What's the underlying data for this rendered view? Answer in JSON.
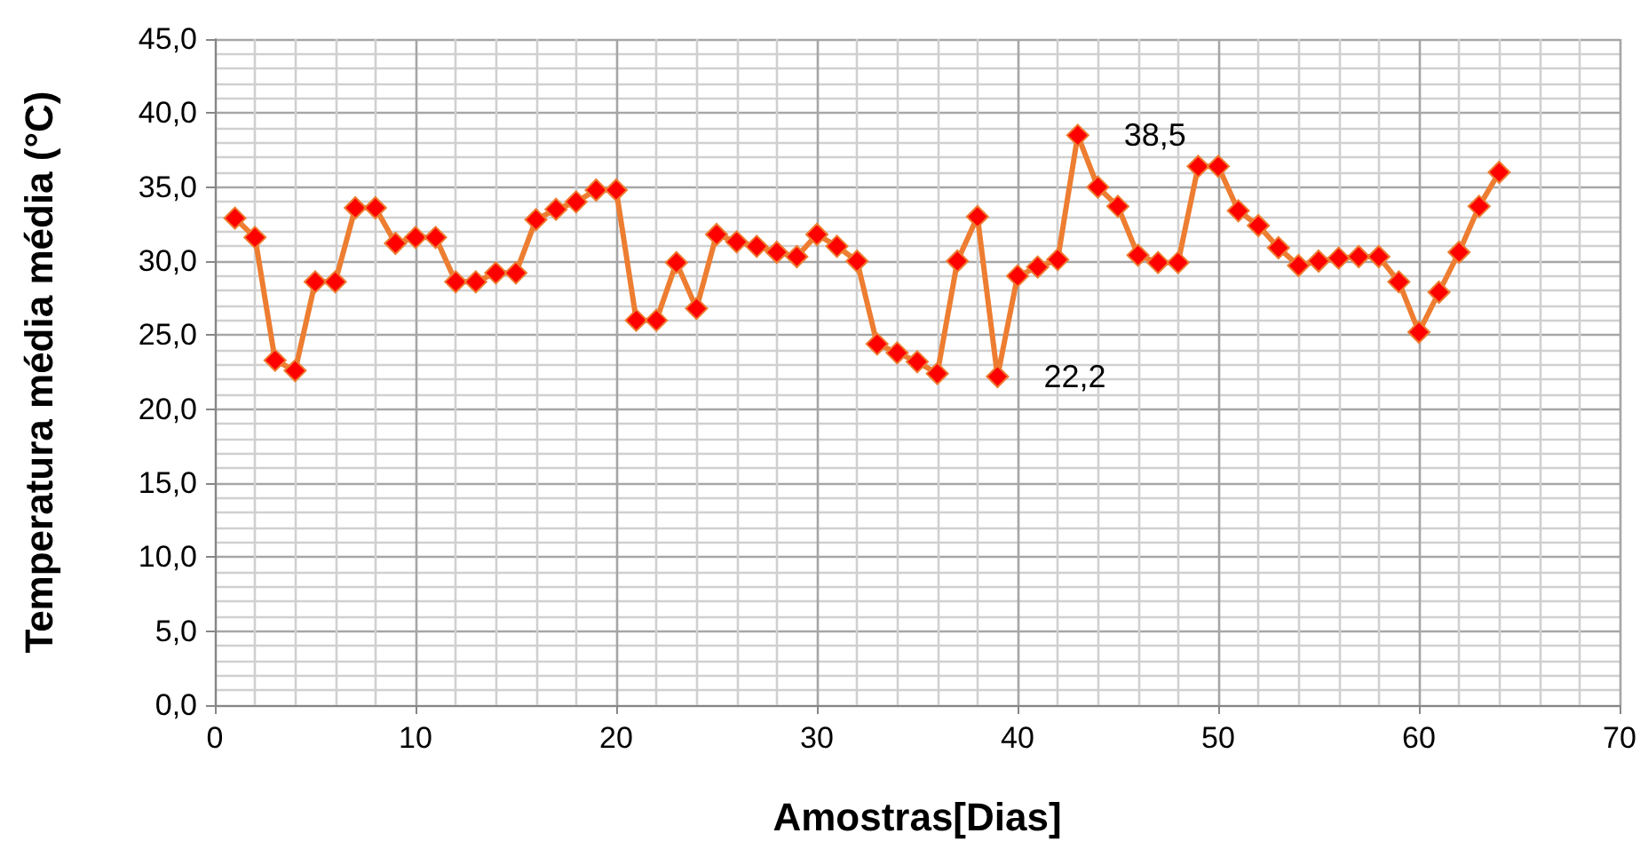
{
  "chart_data": {
    "type": "line",
    "xlabel": "Amostras[Dias]",
    "ylabel": "Temperatura média média (°C)",
    "x": [
      1,
      2,
      3,
      4,
      5,
      6,
      7,
      8,
      9,
      10,
      11,
      12,
      13,
      14,
      15,
      16,
      17,
      18,
      19,
      20,
      21,
      22,
      23,
      24,
      25,
      26,
      27,
      28,
      29,
      30,
      31,
      32,
      33,
      34,
      35,
      36,
      37,
      38,
      39,
      40,
      41,
      42,
      43,
      44,
      45,
      46,
      47,
      48,
      49,
      50,
      51,
      52,
      53,
      54,
      55,
      56,
      57,
      58,
      59,
      60,
      61,
      62,
      63,
      64
    ],
    "series": [
      {
        "color": "#ed7d31",
        "values": [
          32.9,
          31.6,
          23.3,
          22.6,
          28.6,
          28.6,
          33.6,
          33.6,
          31.2,
          31.6,
          31.6,
          28.6,
          28.6,
          29.2,
          29.2,
          32.8,
          33.5,
          34.0,
          34.8,
          34.8,
          26.0,
          26.0,
          29.9,
          26.8,
          31.8,
          31.3,
          31.0,
          30.6,
          30.3,
          31.8,
          31.0,
          30.0,
          24.4,
          23.8,
          23.2,
          22.4,
          30.0,
          33.0,
          22.2,
          29.0,
          29.6,
          30.1,
          38.5,
          35.0,
          33.7,
          30.4,
          29.9,
          29.9,
          36.4,
          36.4,
          33.4,
          32.4,
          30.9,
          29.7,
          30.0,
          30.2,
          30.3,
          30.3,
          28.6,
          25.2,
          27.9,
          30.6,
          33.7,
          36.0
        ]
      }
    ],
    "xlim": [
      0,
      70
    ],
    "xticks": [
      0,
      10,
      20,
      30,
      40,
      50,
      60,
      70
    ],
    "ylim": [
      0,
      45
    ],
    "yticks": [
      {
        "value": 0,
        "label": "0,0"
      },
      {
        "value": 5,
        "label": "5,0"
      },
      {
        "value": 10,
        "label": "10,0"
      },
      {
        "value": 15,
        "label": "15,0"
      },
      {
        "value": 20,
        "label": "20,0"
      },
      {
        "value": 25,
        "label": "25,0"
      },
      {
        "value": 30,
        "label": "30,0"
      },
      {
        "value": 35,
        "label": "35,0"
      },
      {
        "value": 40,
        "label": "40,0"
      },
      {
        "value": 45,
        "label": "45,0"
      }
    ],
    "annotations": [
      {
        "text": "38,5",
        "x": 43,
        "y": 38.5
      },
      {
        "text": "22,2",
        "x": 39,
        "y": 22.2
      }
    ],
    "grid": true,
    "marker": "diamond",
    "line_style": "solid"
  }
}
